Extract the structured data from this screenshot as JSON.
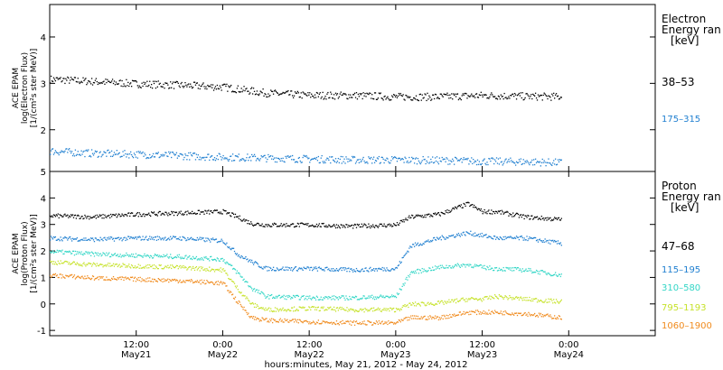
{
  "chart_data": [
    {
      "type": "scatter",
      "panel": "top",
      "ylabel": [
        "ACE EPAM",
        "log(Electron Flux)",
        "[1/(cm²s ster MeV)]"
      ],
      "ylim": [
        1.1,
        4.7
      ],
      "yticks": [
        2,
        3,
        4
      ],
      "legend_title": [
        "Electron",
        "Energy ran",
        "[keV]"
      ],
      "legend_placement": "right",
      "series": [
        {
          "name": "38–53",
          "color": "#000000",
          "x": [
            0,
            6,
            12,
            18,
            24,
            30,
            36,
            42,
            48,
            54,
            60,
            66,
            71
          ],
          "y": [
            3.1,
            3.05,
            3.0,
            2.97,
            2.93,
            2.8,
            2.75,
            2.75,
            2.72,
            2.72,
            2.75,
            2.73,
            2.72
          ]
        },
        {
          "name": "175–315",
          "color": "#1f7fd0",
          "x": [
            0,
            6,
            12,
            18,
            24,
            30,
            36,
            42,
            48,
            54,
            60,
            66,
            71
          ],
          "y": [
            1.55,
            1.5,
            1.48,
            1.45,
            1.42,
            1.4,
            1.38,
            1.36,
            1.36,
            1.35,
            1.33,
            1.32,
            1.3
          ]
        }
      ]
    },
    {
      "type": "scatter",
      "panel": "bottom",
      "ylabel": [
        "ACE EPAM",
        "log(Proton Flux)",
        "[1/(cm²s ster MeV)]"
      ],
      "ylim": [
        -1.2,
        5.0
      ],
      "yticks": [
        -1,
        0,
        1,
        2,
        3,
        4,
        5
      ],
      "legend_title": [
        "Proton",
        "Energy ran",
        "[keV]"
      ],
      "legend_placement": "right",
      "series": [
        {
          "name": "47–68",
          "color": "#000000",
          "x": [
            0,
            6,
            12,
            18,
            24,
            26,
            28,
            30,
            36,
            42,
            48,
            50,
            54,
            58,
            60,
            62,
            66,
            71
          ],
          "y": [
            3.35,
            3.3,
            3.4,
            3.45,
            3.5,
            3.3,
            3.05,
            3.0,
            3.0,
            2.95,
            3.0,
            3.3,
            3.4,
            3.8,
            3.5,
            3.5,
            3.3,
            3.2
          ]
        },
        {
          "name": "115–195",
          "color": "#1f7fd0",
          "x": [
            0,
            6,
            12,
            18,
            24,
            26,
            28,
            30,
            36,
            42,
            48,
            50,
            54,
            58,
            60,
            62,
            66,
            71
          ],
          "y": [
            2.5,
            2.45,
            2.5,
            2.5,
            2.4,
            1.9,
            1.6,
            1.35,
            1.35,
            1.3,
            1.35,
            2.2,
            2.5,
            2.7,
            2.6,
            2.5,
            2.5,
            2.3
          ]
        },
        {
          "name": "310–580",
          "color": "#33d6c6",
          "x": [
            0,
            6,
            12,
            18,
            24,
            26,
            28,
            30,
            36,
            42,
            48,
            50,
            54,
            58,
            60,
            62,
            66,
            71
          ],
          "y": [
            2.0,
            1.9,
            1.85,
            1.8,
            1.7,
            1.2,
            0.6,
            0.3,
            0.25,
            0.25,
            0.3,
            1.2,
            1.4,
            1.5,
            1.4,
            1.35,
            1.3,
            1.1
          ]
        },
        {
          "name": "795–1193",
          "color": "#c6e22a",
          "x": [
            0,
            6,
            12,
            18,
            24,
            26,
            28,
            30,
            36,
            42,
            48,
            50,
            54,
            58,
            60,
            62,
            66,
            71
          ],
          "y": [
            1.6,
            1.5,
            1.45,
            1.4,
            1.3,
            0.6,
            0.0,
            -0.2,
            -0.15,
            -0.2,
            -0.2,
            0.0,
            0.05,
            0.2,
            0.2,
            0.3,
            0.2,
            0.1
          ]
        },
        {
          "name": "1060–1900",
          "color": "#f08a1c",
          "x": [
            0,
            6,
            12,
            18,
            24,
            26,
            28,
            30,
            36,
            42,
            48,
            50,
            54,
            58,
            60,
            62,
            66,
            71
          ],
          "y": [
            1.1,
            1.0,
            0.95,
            0.9,
            0.8,
            0.1,
            -0.5,
            -0.6,
            -0.65,
            -0.7,
            -0.7,
            -0.5,
            -0.5,
            -0.3,
            -0.3,
            -0.3,
            -0.35,
            -0.5
          ]
        }
      ]
    }
  ],
  "xaxis": {
    "xlim": [
      0,
      84
    ],
    "xlabel": "hours:minutes, May 21, 2012 - May 24, 2012",
    "ticks": [
      {
        "x": 12,
        "label": "12:00",
        "sub": "May21"
      },
      {
        "x": 24,
        "label": "0:00",
        "sub": "May22"
      },
      {
        "x": 36,
        "label": "12:00",
        "sub": "May22"
      },
      {
        "x": 48,
        "label": "0:00",
        "sub": "May23"
      },
      {
        "x": 60,
        "label": "12:00",
        "sub": "May23"
      },
      {
        "x": 72,
        "label": "0:00",
        "sub": "May24"
      }
    ]
  }
}
